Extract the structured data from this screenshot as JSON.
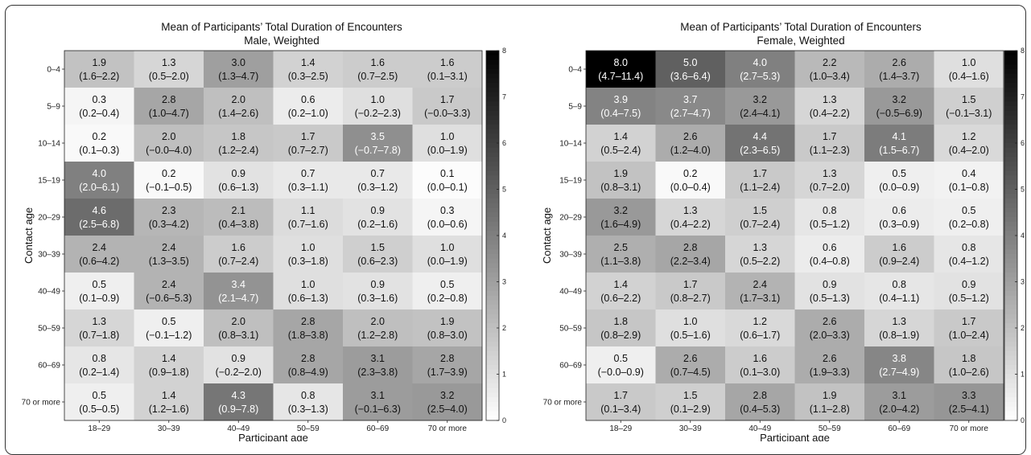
{
  "chart_data": [
    {
      "type": "heatmap",
      "title": "Mean of Participants’ Total Duration of Encounters",
      "subtitle": "Male, Weighted",
      "xlabel": "Participant age",
      "ylabel": "Contact age",
      "x_categories": [
        "18–29",
        "30–39",
        "40–49",
        "50–59",
        "60–69",
        "70 or more"
      ],
      "y_categories": [
        "0–4",
        "5–9",
        "10–14",
        "15–19",
        "20–29",
        "30–39",
        "40–49",
        "50–59",
        "60–69",
        "70 or more"
      ],
      "colorbar": {
        "min": 0,
        "max": 8,
        "ticks": [
          "0",
          "1",
          "2",
          "3",
          "4",
          "5",
          "6",
          "7",
          "8"
        ]
      },
      "values": [
        [
          1.9,
          1.3,
          3.0,
          1.4,
          1.6,
          1.6
        ],
        [
          0.3,
          2.8,
          2.0,
          0.6,
          1.0,
          1.7
        ],
        [
          0.2,
          2.0,
          1.8,
          1.7,
          3.5,
          1.0
        ],
        [
          4.0,
          0.2,
          0.9,
          0.7,
          0.7,
          0.1
        ],
        [
          4.6,
          2.3,
          2.1,
          1.1,
          0.9,
          0.3
        ],
        [
          2.4,
          2.4,
          1.6,
          1.0,
          1.5,
          1.0
        ],
        [
          0.5,
          2.4,
          3.4,
          1.0,
          0.9,
          0.5
        ],
        [
          1.3,
          0.5,
          2.0,
          2.8,
          2.0,
          1.9
        ],
        [
          0.8,
          1.4,
          0.9,
          2.8,
          3.1,
          2.8
        ],
        [
          0.5,
          1.4,
          4.3,
          0.8,
          3.1,
          3.2
        ]
      ],
      "labels": [
        [
          "1.9",
          "1.3",
          "3.0",
          "1.4",
          "1.6",
          "1.6"
        ],
        [
          "0.3",
          "2.8",
          "2.0",
          "0.6",
          "1.0",
          "1.7"
        ],
        [
          "0.2",
          "2.0",
          "1.8",
          "1.7",
          "3.5",
          "1.0"
        ],
        [
          "4.0",
          "0.2",
          "0.9",
          "0.7",
          "0.7",
          "0.1"
        ],
        [
          "4.6",
          "2.3",
          "2.1",
          "1.1",
          "0.9",
          "0.3"
        ],
        [
          "2.4",
          "2.4",
          "1.6",
          "1.0",
          "1.5",
          "1.0"
        ],
        [
          "0.5",
          "2.4",
          "3.4",
          "1.0",
          "0.9",
          "0.5"
        ],
        [
          "1.3",
          "0.5",
          "2.0",
          "2.8",
          "2.0",
          "1.9"
        ],
        [
          "0.8",
          "1.4",
          "0.9",
          "2.8",
          "3.1",
          "2.8"
        ],
        [
          "0.5",
          "1.4",
          "4.3",
          "0.8",
          "3.1",
          "3.2"
        ]
      ],
      "ci": [
        [
          "(1.6–2.2)",
          "(0.5–2.0)",
          "(1.3–4.7)",
          "(0.3–2.5)",
          "(0.7–2.5)",
          "(0.1–3.1)"
        ],
        [
          "(0.2–0.4)",
          "(1.0–4.7)",
          "(1.4–2.6)",
          "(0.2–1.0)",
          "(−0.2–2.3)",
          "(−0.0–3.3)"
        ],
        [
          "(0.1–0.3)",
          "(−0.0–4.0)",
          "(1.2–2.4)",
          "(0.7–2.7)",
          "(−0.7–7.8)",
          "(0.0–1.9)"
        ],
        [
          "(2.0–6.1)",
          "(−0.1–0.5)",
          "(0.6–1.3)",
          "(0.3–1.1)",
          "(0.3–1.2)",
          "(0.0–0.1)"
        ],
        [
          "(2.5–6.8)",
          "(0.3–4.2)",
          "(0.4–3.8)",
          "(0.7–1.6)",
          "(0.2–1.6)",
          "(0.0–0.6)"
        ],
        [
          "(0.6–4.2)",
          "(1.3–3.5)",
          "(0.7–2.4)",
          "(0.3–1.8)",
          "(0.6–2.3)",
          "(0.0–1.9)"
        ],
        [
          "(0.1–0.9)",
          "(−0.6–5.3)",
          "(2.1–4.7)",
          "(0.6–1.3)",
          "(0.3–1.6)",
          "(0.2–0.8)"
        ],
        [
          "(0.7–1.8)",
          "(−0.1–1.2)",
          "(0.8–3.1)",
          "(1.8–3.8)",
          "(1.2–2.8)",
          "(0.8–3.0)"
        ],
        [
          "(0.2–1.4)",
          "(0.9–1.8)",
          "(−0.2–2.0)",
          "(0.8–4.9)",
          "(2.3–3.8)",
          "(1.7–3.9)"
        ],
        [
          "(0.5–0.5)",
          "(1.2–1.6)",
          "(0.9–7.8)",
          "(0.3–1.3)",
          "(−0.1–6.3)",
          "(2.5–4.0)"
        ]
      ]
    },
    {
      "type": "heatmap",
      "title": "Mean of Participants’ Total Duration of Encounters",
      "subtitle": "Female, Weighted",
      "xlabel": "Participant age",
      "ylabel": "Contact age",
      "x_categories": [
        "18–29",
        "30–39",
        "40–49",
        "50–59",
        "60–69",
        "70 or more"
      ],
      "y_categories": [
        "0–4",
        "5–9",
        "10–14",
        "15–19",
        "20–29",
        "30–39",
        "40–49",
        "50–59",
        "60–69",
        "70 or more"
      ],
      "colorbar": {
        "min": 0,
        "max": 8,
        "ticks": [
          "0",
          "1",
          "2",
          "3",
          "4",
          "5",
          "6",
          "7",
          "8"
        ]
      },
      "values": [
        [
          8.0,
          5.0,
          4.0,
          2.2,
          2.6,
          1.0
        ],
        [
          3.9,
          3.7,
          3.2,
          1.3,
          3.2,
          1.5
        ],
        [
          1.4,
          2.6,
          4.4,
          1.7,
          4.1,
          1.2
        ],
        [
          1.9,
          0.2,
          1.7,
          1.3,
          0.5,
          0.4
        ],
        [
          3.2,
          1.3,
          1.5,
          0.8,
          0.6,
          0.5
        ],
        [
          2.5,
          2.8,
          1.3,
          0.6,
          1.6,
          0.8
        ],
        [
          1.4,
          1.7,
          2.4,
          0.9,
          0.8,
          0.9
        ],
        [
          1.8,
          1.0,
          1.2,
          2.6,
          1.3,
          1.7
        ],
        [
          0.5,
          2.6,
          1.6,
          2.6,
          3.8,
          1.8
        ],
        [
          1.7,
          1.5,
          2.8,
          1.9,
          3.1,
          3.3
        ]
      ],
      "labels": [
        [
          "8.0",
          "5.0",
          "4.0",
          "2.2",
          "2.6",
          "1.0"
        ],
        [
          "3.9",
          "3.7",
          "3.2",
          "1.3",
          "3.2",
          "1.5"
        ],
        [
          "1.4",
          "2.6",
          "4.4",
          "1.7",
          "4.1",
          "1.2"
        ],
        [
          "1.9",
          "0.2",
          "1.7",
          "1.3",
          "0.5",
          "0.4"
        ],
        [
          "3.2",
          "1.3",
          "1.5",
          "0.8",
          "0.6",
          "0.5"
        ],
        [
          "2.5",
          "2.8",
          "1.3",
          "0.6",
          "1.6",
          "0.8"
        ],
        [
          "1.4",
          "1.7",
          "2.4",
          "0.9",
          "0.8",
          "0.9"
        ],
        [
          "1.8",
          "1.0",
          "1.2",
          "2.6",
          "1.3",
          "1.7"
        ],
        [
          "0.5",
          "2.6",
          "1.6",
          "2.6",
          "3.8",
          "1.8"
        ],
        [
          "1.7",
          "1.5",
          "2.8",
          "1.9",
          "3.1",
          "3.3"
        ]
      ],
      "ci": [
        [
          "(4.7–11.4)",
          "(3.6–6.4)",
          "(2.7–5.3)",
          "(1.0–3.4)",
          "(1.4–3.7)",
          "(0.4–1.6)"
        ],
        [
          "(0.4–7.5)",
          "(2.7–4.7)",
          "(2.4–4.1)",
          "(0.4–2.2)",
          "(−0.5–6.9)",
          "(−0.1–3.1)"
        ],
        [
          "(0.5–2.4)",
          "(1.2–4.0)",
          "(2.3–6.5)",
          "(1.1–2.3)",
          "(1.5–6.7)",
          "(0.4–2.0)"
        ],
        [
          "(0.8–3.1)",
          "(0.0–0.4)",
          "(1.1–2.4)",
          "(0.7–2.0)",
          "(0.0–0.9)",
          "(0.1–0.8)"
        ],
        [
          "(1.6–4.9)",
          "(0.4–2.2)",
          "(0.7–2.4)",
          "(0.5–1.2)",
          "(0.3–0.9)",
          "(0.2–0.8)"
        ],
        [
          "(1.1–3.8)",
          "(2.2–3.4)",
          "(0.5–2.2)",
          "(0.4–0.8)",
          "(0.9–2.4)",
          "(0.4–1.2)"
        ],
        [
          "(0.6–2.2)",
          "(0.8–2.7)",
          "(1.7–3.1)",
          "(0.5–1.3)",
          "(0.4–1.1)",
          "(0.5–1.2)"
        ],
        [
          "(0.8–2.9)",
          "(0.5–1.6)",
          "(0.6–1.7)",
          "(2.0–3.3)",
          "(0.8–1.9)",
          "(1.0–2.4)"
        ],
        [
          "(−0.0–0.9)",
          "(0.7–4.5)",
          "(0.1–3.0)",
          "(1.9–3.3)",
          "(2.7–4.9)",
          "(1.0–2.6)"
        ],
        [
          "(0.1–3.4)",
          "(0.1–2.9)",
          "(0.4–5.3)",
          "(1.1–2.8)",
          "(2.0–4.2)",
          "(2.5–4.1)"
        ]
      ]
    }
  ]
}
